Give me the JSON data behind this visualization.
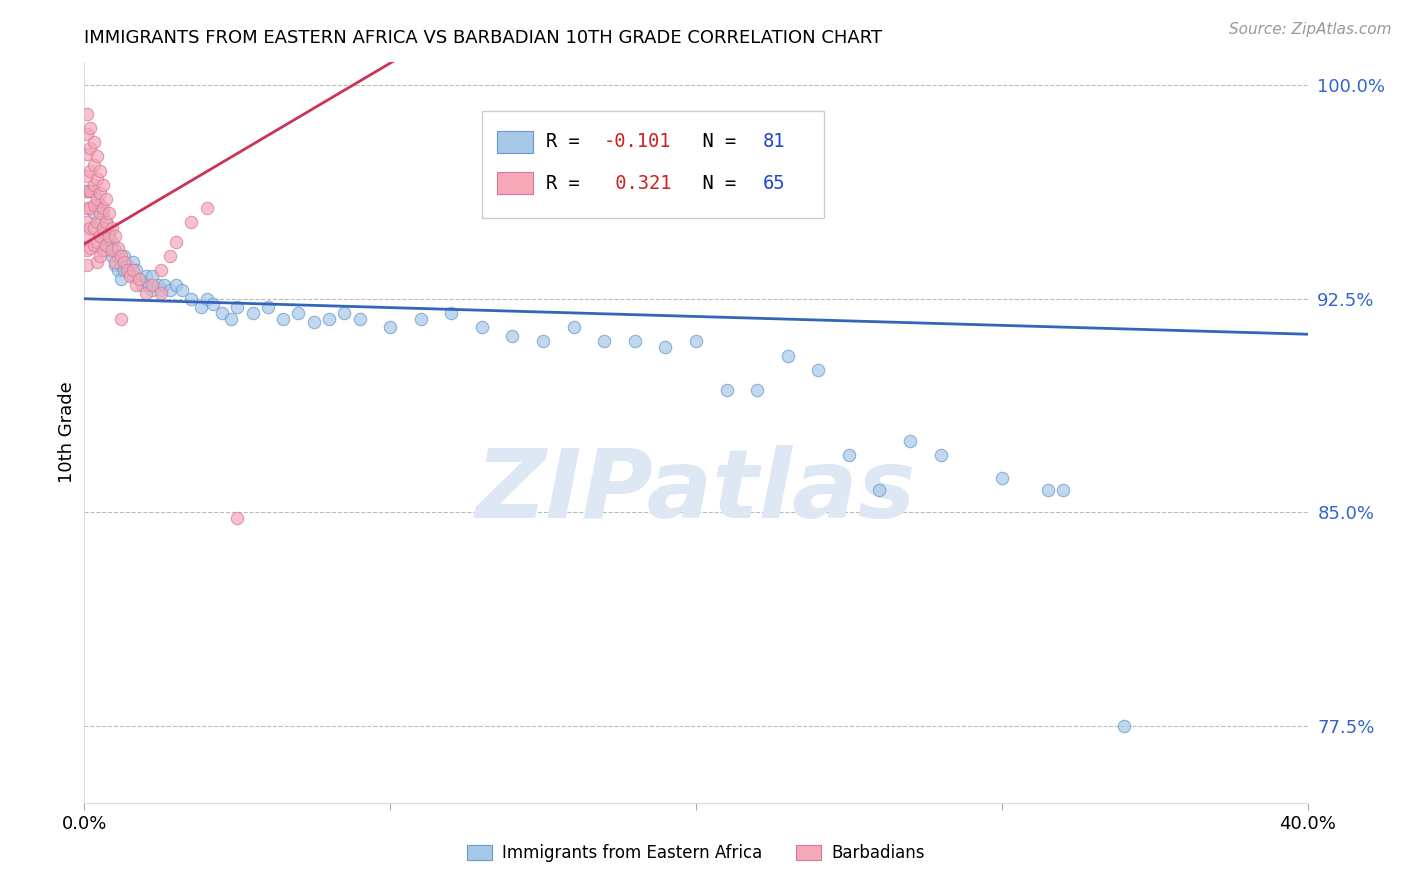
{
  "title": "IMMIGRANTS FROM EASTERN AFRICA VS BARBADIAN 10TH GRADE CORRELATION CHART",
  "source_text": "Source: ZipAtlas.com",
  "ylabel": "10th Grade",
  "xlim": [
    0.0,
    0.4
  ],
  "ylim": [
    0.748,
    1.008
  ],
  "x_ticks": [
    0.0,
    0.1,
    0.2,
    0.3,
    0.4
  ],
  "x_tick_labels": [
    "0.0%",
    "",
    "",
    "",
    "40.0%"
  ],
  "y_ticks": [
    0.775,
    0.85,
    0.925,
    1.0
  ],
  "y_tick_labels": [
    "77.5%",
    "85.0%",
    "92.5%",
    "100.0%"
  ],
  "blue_R": -0.101,
  "blue_N": 81,
  "pink_R": 0.321,
  "pink_N": 65,
  "blue_color": "#a8c8e8",
  "pink_color": "#f4a8b8",
  "blue_edge_color": "#6699cc",
  "pink_edge_color": "#dd7799",
  "blue_line_color": "#3366bb",
  "pink_line_color": "#cc3355",
  "watermark": "ZIPatlas",
  "legend_label_blue": "Immigrants from Eastern Africa",
  "legend_label_pink": "Barbadians",
  "blue_points": [
    [
      0.001,
      0.963
    ],
    [
      0.002,
      0.963
    ],
    [
      0.003,
      0.963
    ],
    [
      0.003,
      0.955
    ],
    [
      0.004,
      0.958
    ],
    [
      0.005,
      0.958
    ],
    [
      0.005,
      0.952
    ],
    [
      0.005,
      0.947
    ],
    [
      0.006,
      0.955
    ],
    [
      0.006,
      0.95
    ],
    [
      0.006,
      0.945
    ],
    [
      0.007,
      0.952
    ],
    [
      0.007,
      0.947
    ],
    [
      0.007,
      0.942
    ],
    [
      0.008,
      0.948
    ],
    [
      0.008,
      0.943
    ],
    [
      0.009,
      0.945
    ],
    [
      0.009,
      0.94
    ],
    [
      0.01,
      0.942
    ],
    [
      0.01,
      0.937
    ],
    [
      0.011,
      0.94
    ],
    [
      0.011,
      0.935
    ],
    [
      0.012,
      0.937
    ],
    [
      0.012,
      0.932
    ],
    [
      0.013,
      0.94
    ],
    [
      0.013,
      0.935
    ],
    [
      0.014,
      0.937
    ],
    [
      0.015,
      0.935
    ],
    [
      0.016,
      0.938
    ],
    [
      0.016,
      0.933
    ],
    [
      0.017,
      0.935
    ],
    [
      0.018,
      0.932
    ],
    [
      0.019,
      0.93
    ],
    [
      0.02,
      0.933
    ],
    [
      0.021,
      0.93
    ],
    [
      0.022,
      0.933
    ],
    [
      0.022,
      0.928
    ],
    [
      0.024,
      0.93
    ],
    [
      0.025,
      0.928
    ],
    [
      0.026,
      0.93
    ],
    [
      0.028,
      0.928
    ],
    [
      0.03,
      0.93
    ],
    [
      0.032,
      0.928
    ],
    [
      0.035,
      0.925
    ],
    [
      0.038,
      0.922
    ],
    [
      0.04,
      0.925
    ],
    [
      0.042,
      0.923
    ],
    [
      0.045,
      0.92
    ],
    [
      0.048,
      0.918
    ],
    [
      0.05,
      0.922
    ],
    [
      0.055,
      0.92
    ],
    [
      0.06,
      0.922
    ],
    [
      0.065,
      0.918
    ],
    [
      0.07,
      0.92
    ],
    [
      0.075,
      0.917
    ],
    [
      0.08,
      0.918
    ],
    [
      0.085,
      0.92
    ],
    [
      0.09,
      0.918
    ],
    [
      0.1,
      0.915
    ],
    [
      0.11,
      0.918
    ],
    [
      0.12,
      0.92
    ],
    [
      0.13,
      0.915
    ],
    [
      0.14,
      0.912
    ],
    [
      0.15,
      0.91
    ],
    [
      0.16,
      0.915
    ],
    [
      0.17,
      0.91
    ],
    [
      0.18,
      0.91
    ],
    [
      0.19,
      0.908
    ],
    [
      0.2,
      0.91
    ],
    [
      0.21,
      0.893
    ],
    [
      0.22,
      0.893
    ],
    [
      0.23,
      0.905
    ],
    [
      0.24,
      0.9
    ],
    [
      0.25,
      0.87
    ],
    [
      0.26,
      0.858
    ],
    [
      0.27,
      0.875
    ],
    [
      0.28,
      0.87
    ],
    [
      0.3,
      0.862
    ],
    [
      0.315,
      0.858
    ],
    [
      0.32,
      0.858
    ],
    [
      0.34,
      0.775
    ]
  ],
  "pink_points": [
    [
      0.001,
      0.99
    ],
    [
      0.001,
      0.983
    ],
    [
      0.001,
      0.976
    ],
    [
      0.001,
      0.968
    ],
    [
      0.001,
      0.963
    ],
    [
      0.001,
      0.957
    ],
    [
      0.001,
      0.952
    ],
    [
      0.001,
      0.947
    ],
    [
      0.001,
      0.942
    ],
    [
      0.001,
      0.937
    ],
    [
      0.002,
      0.985
    ],
    [
      0.002,
      0.978
    ],
    [
      0.002,
      0.97
    ],
    [
      0.002,
      0.963
    ],
    [
      0.002,
      0.957
    ],
    [
      0.002,
      0.95
    ],
    [
      0.002,
      0.943
    ],
    [
      0.003,
      0.98
    ],
    [
      0.003,
      0.972
    ],
    [
      0.003,
      0.965
    ],
    [
      0.003,
      0.958
    ],
    [
      0.003,
      0.95
    ],
    [
      0.003,
      0.944
    ],
    [
      0.004,
      0.975
    ],
    [
      0.004,
      0.967
    ],
    [
      0.004,
      0.96
    ],
    [
      0.004,
      0.952
    ],
    [
      0.004,
      0.945
    ],
    [
      0.004,
      0.938
    ],
    [
      0.005,
      0.97
    ],
    [
      0.005,
      0.962
    ],
    [
      0.005,
      0.955
    ],
    [
      0.005,
      0.947
    ],
    [
      0.005,
      0.94
    ],
    [
      0.006,
      0.965
    ],
    [
      0.006,
      0.957
    ],
    [
      0.006,
      0.95
    ],
    [
      0.006,
      0.942
    ],
    [
      0.007,
      0.96
    ],
    [
      0.007,
      0.952
    ],
    [
      0.007,
      0.944
    ],
    [
      0.008,
      0.955
    ],
    [
      0.008,
      0.947
    ],
    [
      0.009,
      0.95
    ],
    [
      0.009,
      0.942
    ],
    [
      0.01,
      0.947
    ],
    [
      0.01,
      0.938
    ],
    [
      0.011,
      0.943
    ],
    [
      0.012,
      0.94
    ],
    [
      0.013,
      0.938
    ],
    [
      0.014,
      0.935
    ],
    [
      0.015,
      0.933
    ],
    [
      0.016,
      0.935
    ],
    [
      0.017,
      0.93
    ],
    [
      0.018,
      0.932
    ],
    [
      0.02,
      0.927
    ],
    [
      0.022,
      0.93
    ],
    [
      0.025,
      0.935
    ],
    [
      0.028,
      0.94
    ],
    [
      0.03,
      0.945
    ],
    [
      0.035,
      0.952
    ],
    [
      0.04,
      0.957
    ],
    [
      0.012,
      0.918
    ],
    [
      0.025,
      0.927
    ],
    [
      0.05,
      0.848
    ]
  ]
}
